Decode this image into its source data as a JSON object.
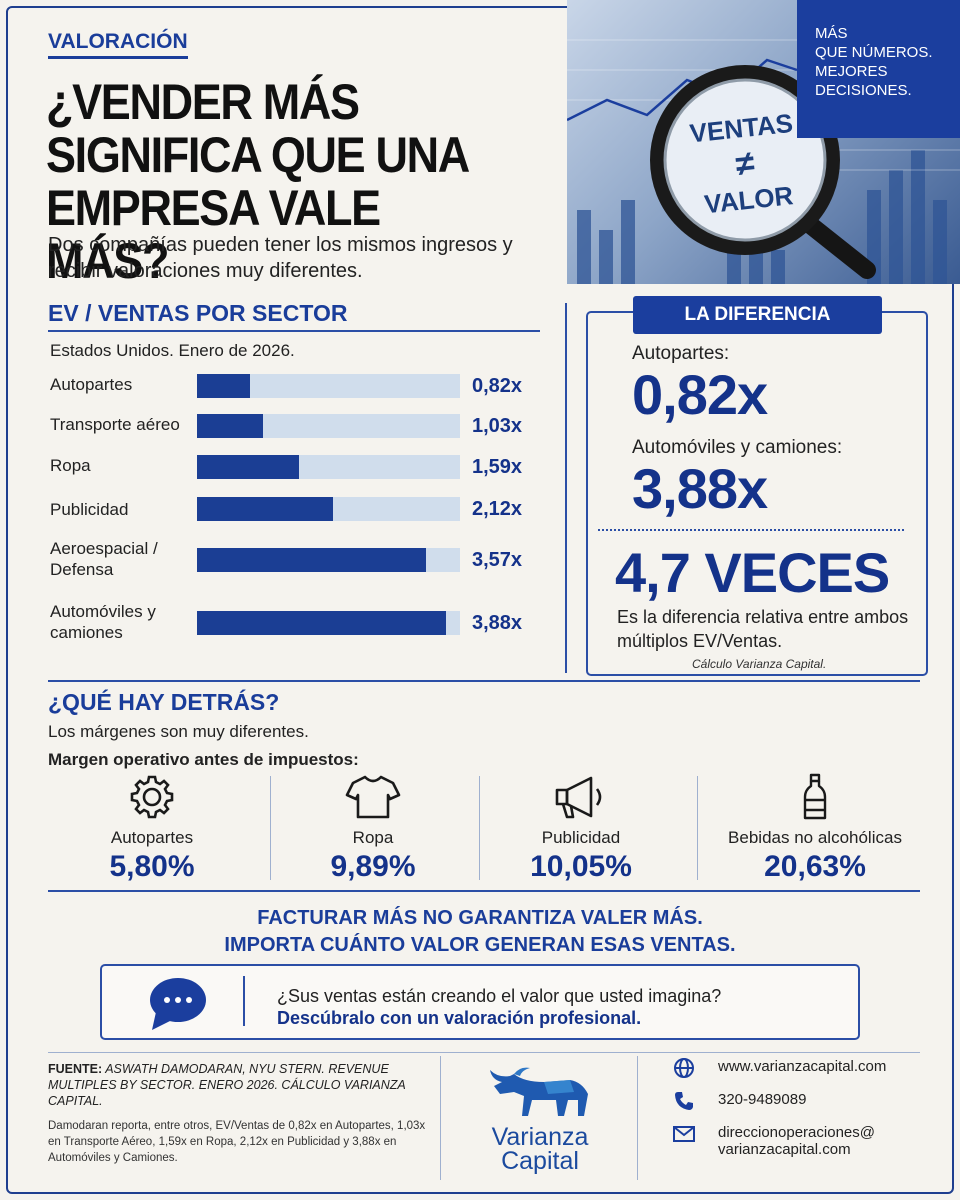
{
  "header": {
    "tag": "VALORACIÓN",
    "title": "¿VENDER MÁS SIGNIFICA QUE UNA EMPRESA VALE MÁS?",
    "subtitle": "Dos compañías pueden tener los mismos ingresos y recibir valoraciones muy diferentes."
  },
  "hero": {
    "lens_top": "VENTAS",
    "lens_sign": "≠",
    "lens_bottom": "VALOR",
    "box_line1": "MÁS",
    "box_line2": "QUE NÚMEROS.",
    "box_line3": "MEJORES",
    "box_line4": "DECISIONES."
  },
  "sector_chart": {
    "title": "EV / VENTAS POR SECTOR",
    "subtitle": "Estados Unidos. Enero de 2026."
  },
  "chart_data": {
    "type": "bar",
    "orientation": "horizontal",
    "title": "EV / VENTAS POR SECTOR",
    "categories": [
      "Autopartes",
      "Transporte aéreo",
      "Ropa",
      "Publicidad",
      "Aeroespacial / Defensa",
      "Automóviles y camiones"
    ],
    "values": [
      0.82,
      1.03,
      1.59,
      2.12,
      3.57,
      3.88
    ],
    "value_labels": [
      "0,82x",
      "1,03x",
      "1,59x",
      "2,12x",
      "3,57x",
      "3,88x"
    ],
    "xlim": [
      0,
      4.1
    ],
    "grid": false
  },
  "difference": {
    "header": "LA DIFERENCIA",
    "label1": "Autopartes:",
    "value1": "0,82x",
    "label2": "Automóviles y camiones:",
    "value2": "3,88x",
    "veces": "4,7 VECES",
    "description": "Es la diferencia relativa entre ambos múltiplos EV/Ventas.",
    "note": "Cálculo Varianza Capital."
  },
  "behind": {
    "title": "¿QUÉ HAY DETRÁS?",
    "subtitle": "Los márgenes son muy diferentes.",
    "margin_title": "Margen operativo antes de impuestos:",
    "items": [
      {
        "label": "Autopartes",
        "value": "5,80%",
        "icon": "gear-icon"
      },
      {
        "label": "Ropa",
        "value": "9,89%",
        "icon": "tshirt-icon"
      },
      {
        "label": "Publicidad",
        "value": "10,05%",
        "icon": "megaphone-icon"
      },
      {
        "label": "Bebidas no alcohólicas",
        "value": "20,63%",
        "icon": "bottle-icon"
      }
    ]
  },
  "slogan": {
    "line1": "FACTURAR MÁS NO GARANTIZA VALER MÁS.",
    "line2": "IMPORTA CUÁNTO VALOR GENERAN ESAS VENTAS."
  },
  "cta": {
    "question": "¿Sus ventas están creando el valor que usted imagina?",
    "action": "Descúbralo con un valoración profesional."
  },
  "footer": {
    "source_label": "FUENTE:",
    "source_text": "ASWATH DAMODARAN, NYU STERN. REVENUE MULTIPLES BY SECTOR. ENERO 2026. CÁLCULO VARIANZA CAPITAL.",
    "detail": "Damodaran reporta, entre otros, EV/Ventas de 0,82x en Autopartes, 1,03x en Transporte Aéreo, 1,59x en Ropa, 2,12x en Publicidad y 3,88x en Automóviles y Camiones.",
    "logo_line1": "Varianza",
    "logo_line2": "Capital",
    "website": "www.varianzacapital.com",
    "phone": "320-9489089",
    "email_line1": "direccionoperaciones@",
    "email_line2": "varianzacapital.com"
  },
  "colors": {
    "navy": "#14328a",
    "accent": "#1b3e9e",
    "bar_track": "#d0ddec",
    "background": "#f5f3ee"
  }
}
